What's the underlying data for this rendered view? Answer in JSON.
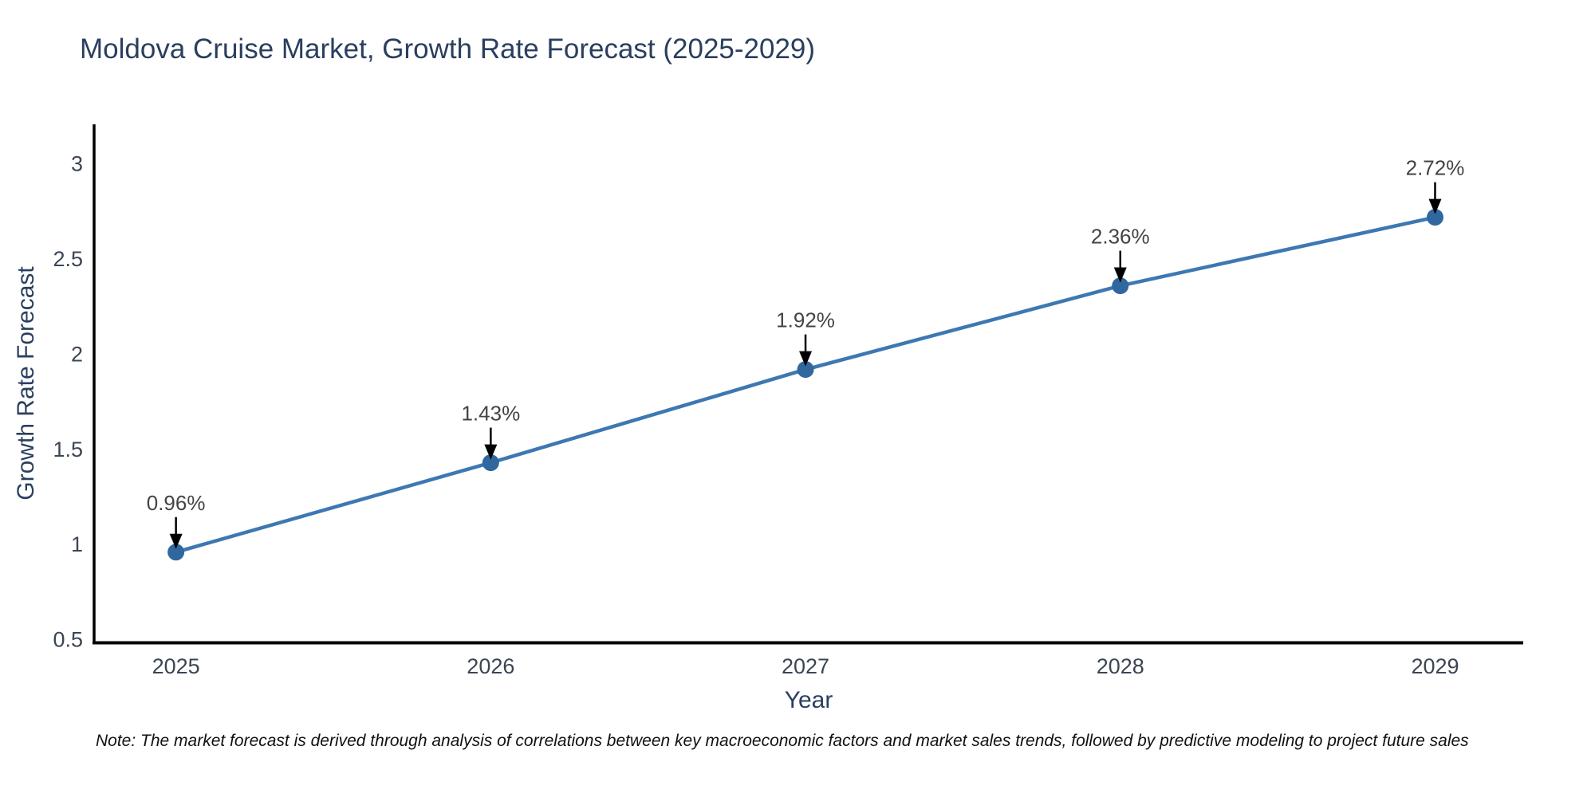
{
  "chart_data": {
    "type": "line",
    "title": "Moldova Cruise Market, Growth Rate Forecast (2025-2029)",
    "xlabel": "Year",
    "ylabel": "Growth Rate Forecast",
    "x": [
      2025,
      2026,
      2027,
      2028,
      2029
    ],
    "x_tick_labels": [
      "2025",
      "2026",
      "2027",
      "2028",
      "2029"
    ],
    "series": [
      {
        "name": "Growth Rate Forecast",
        "values": [
          0.96,
          1.43,
          1.92,
          2.36,
          2.72
        ],
        "labels": [
          "0.96%",
          "1.43%",
          "1.92%",
          "2.36%",
          "2.72%"
        ]
      }
    ],
    "y_ticks": [
      0.5,
      1,
      1.5,
      2,
      2.5,
      3
    ],
    "y_tick_labels": [
      "0.5",
      "1",
      "1.5",
      "2",
      "2.5",
      "3"
    ],
    "x_range": [
      2024.74,
      2029.28
    ],
    "y_range": [
      0.49,
      3.2
    ],
    "grid": false,
    "legend": "none",
    "colors": {
      "line": "#3d78b2",
      "marker": "#30679f",
      "axis": "#000000",
      "tick_text": "#3b4554",
      "axis_title_text": "#2a3f5f",
      "title_text": "#2a3f5f",
      "annotation_text": "#444444",
      "arrow": "#000000",
      "background": "#ffffff"
    }
  },
  "footnote": {
    "text": "Note: The market forecast is derived through analysis of correlations between key macroeconomic factors and market sales trends, followed by predictive modeling to project future sales"
  }
}
